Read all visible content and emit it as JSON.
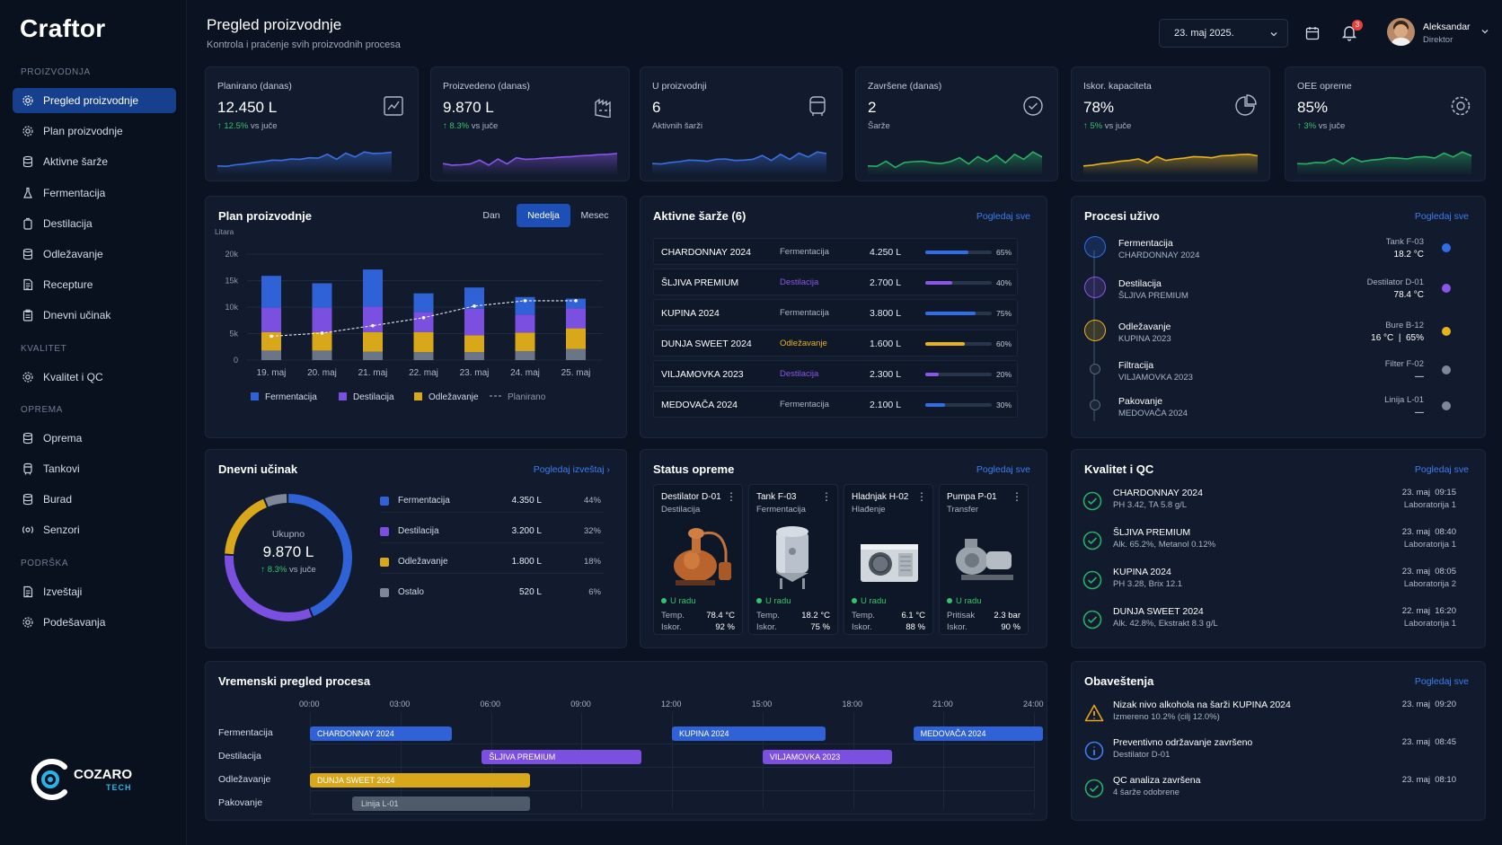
{
  "app": {
    "name": "Craftor"
  },
  "header": {
    "title": "Pregled proizvodnje",
    "subtitle": "Kontrola i praćenje svih proizvodnih procesa",
    "date": "23. maj 2025.",
    "notif_count": "3",
    "user_name": "Aleksandar",
    "user_role": "Direktor"
  },
  "sidebar": {
    "sections": [
      {
        "title": "PROIZVODNJA",
        "items": [
          {
            "label": "Pregled proizvodnje",
            "icon": "gear-icon"
          },
          {
            "label": "Plan proizvodnje",
            "icon": "gear-icon"
          },
          {
            "label": "Aktivne šarže",
            "icon": "barrel-icon"
          },
          {
            "label": "Fermentacija",
            "icon": "flask-icon"
          },
          {
            "label": "Destilacija",
            "icon": "still-icon"
          },
          {
            "label": "Odležavanje",
            "icon": "barrel-icon"
          },
          {
            "label": "Recepture",
            "icon": "document-icon"
          },
          {
            "label": "Dnevni učinak",
            "icon": "clipboard-icon"
          }
        ]
      },
      {
        "title": "KVALITET",
        "items": [
          {
            "label": "Kvalitet i QC",
            "icon": "gear-icon"
          }
        ]
      },
      {
        "title": "OPREMA",
        "items": [
          {
            "label": "Oprema",
            "icon": "barrel-icon"
          },
          {
            "label": "Tankovi",
            "icon": "tank-icon"
          },
          {
            "label": "Burad",
            "icon": "barrel-icon"
          },
          {
            "label": "Senzori",
            "icon": "sensor-icon"
          }
        ]
      },
      {
        "title": "PODRŠKA",
        "items": [
          {
            "label": "Izveštaji",
            "icon": "document-icon"
          },
          {
            "label": "Podešavanja",
            "icon": "gear-icon"
          }
        ]
      }
    ],
    "brand_name": "COZARO",
    "brand_sub": "TECH"
  },
  "kpis": [
    {
      "label": "Planirano (danas)",
      "value": "12.450 L",
      "trend": "12.5%",
      "trend_suffix": "vs juče",
      "icon": "chart-icon",
      "color": "#3b6fe0"
    },
    {
      "label": "Proizvedeno (danas)",
      "value": "9.870 L",
      "trend": "8.3%",
      "trend_suffix": "vs juče",
      "icon": "factory-icon",
      "color": "#8a55e8"
    },
    {
      "label": "U proizvodnji",
      "value": "6",
      "sub": "Aktivnih šarži",
      "icon": "tank-icon",
      "color": "#3b6fe0"
    },
    {
      "label": "Završene (danas)",
      "value": "2",
      "sub": "Šarže",
      "icon": "check-circle-icon",
      "color": "#29b065"
    },
    {
      "label": "Iskor. kapaciteta",
      "value": "78%",
      "trend": "5%",
      "trend_suffix": "vs juče",
      "icon": "pie-icon",
      "color": "#e8b21c"
    },
    {
      "label": "OEE opreme",
      "value": "85%",
      "trend": "3%",
      "trend_suffix": "vs juče",
      "icon": "gear-icon",
      "color": "#29b065"
    }
  ],
  "plan": {
    "title": "Plan proizvodnje",
    "toggles": [
      "Dan",
      "Nedelja",
      "Mesec"
    ],
    "active_toggle": "Nedelja"
  },
  "chart_data": {
    "type": "bar",
    "ylabel": "Litara",
    "ylim": [
      0,
      20000
    ],
    "yticks": [
      "0",
      "5k",
      "10k",
      "15k",
      "20k"
    ],
    "categories": [
      "19. maj",
      "20. maj",
      "21. maj",
      "22. maj",
      "23. maj",
      "24. maj",
      "25. maj"
    ],
    "series": [
      {
        "name": "Fermentacija",
        "color": "#2f62d6",
        "values": [
          6000,
          4600,
          7000,
          3500,
          4000,
          3300,
          1800
        ]
      },
      {
        "name": "Destilacija",
        "color": "#7b4fe0",
        "values": [
          4600,
          4600,
          4800,
          3800,
          5000,
          3400,
          3800
        ]
      },
      {
        "name": "Odležavanje",
        "color": "#d9a81a",
        "values": [
          3500,
          3500,
          3700,
          3800,
          3200,
          3500,
          3900
        ]
      },
      {
        "name": "Ostalo",
        "color": "#6a7587",
        "values": [
          1800,
          1800,
          1600,
          1500,
          1500,
          1700,
          2100
        ]
      }
    ],
    "line": {
      "name": "Planirano",
      "values": [
        4500,
        5100,
        6500,
        8000,
        10200,
        11200,
        11200
      ]
    }
  },
  "batches": {
    "title": "Aktivne šarže (6)",
    "link": "Pogledaj sve",
    "rows": [
      {
        "name": "CHARDONNAY 2024",
        "process": "Fermentacija",
        "volume": "4.250 L",
        "pct": "65%",
        "progress": 0.65,
        "color": "#2f6ee6"
      },
      {
        "name": "ŠLJIVA PREMIUM",
        "process": "Destilacija",
        "volume": "2.700 L",
        "pct": "40%",
        "progress": 0.4,
        "color": "#8a55e8"
      },
      {
        "name": "KUPINA 2024",
        "process": "Fermentacija",
        "volume": "3.800 L",
        "pct": "75%",
        "progress": 0.75,
        "color": "#2f6ee6"
      },
      {
        "name": "DUNJA SWEET 2024",
        "process": "Odležavanje",
        "volume": "1.600 L",
        "pct": "60%",
        "progress": 0.6,
        "color": "#e8b21c"
      },
      {
        "name": "VILJAMOVKA 2023",
        "process": "Destilacija",
        "volume": "2.300 L",
        "pct": "20%",
        "progress": 0.2,
        "color": "#8a55e8"
      },
      {
        "name": "MEDOVAČA 2024",
        "process": "Fermentacija",
        "volume": "2.100 L",
        "pct": "30%",
        "progress": 0.3,
        "color": "#2f6ee6"
      }
    ]
  },
  "live": {
    "title": "Procesi uživo",
    "link": "Pogledaj sve",
    "rows": [
      {
        "process": "Fermentacija",
        "batch": "CHARDONNAY 2024",
        "equip": "Tank F-03",
        "reading": "18.2 °C",
        "color": "#2f6ee6"
      },
      {
        "process": "Destilacija",
        "batch": "ŠLJIVA PREMIUM",
        "equip": "Destilator D-01",
        "reading": "78.4 °C",
        "color": "#8a55e8"
      },
      {
        "process": "Odležavanje",
        "batch": "KUPINA 2023",
        "equip": "Bure B-12",
        "reading": "16 °C  |  65%",
        "color": "#e8b21c"
      },
      {
        "process": "Filtracija",
        "batch": "VILJAMOVKA 2023",
        "equip": "Filter F-02",
        "reading": "—",
        "color": "#7d8797"
      },
      {
        "process": "Pakovanje",
        "batch": "MEDOVAČA 2024",
        "equip": "Linija L-01",
        "reading": "—",
        "color": "#7d8797"
      }
    ]
  },
  "daily": {
    "title": "Dnevni učinak",
    "link": "Pogledaj izveštaj",
    "total_label": "Ukupno",
    "total": "9.870 L",
    "trend": "8.3%",
    "trend_suffix": "vs juče",
    "rows": [
      {
        "name": "Fermentacija",
        "value": "4.350 L",
        "pct": "44%",
        "share": 0.44,
        "color": "#2f62d6"
      },
      {
        "name": "Destilacija",
        "value": "3.200 L",
        "pct": "32%",
        "share": 0.32,
        "color": "#7b4fe0"
      },
      {
        "name": "Odležavanje",
        "value": "1.800 L",
        "pct": "18%",
        "share": 0.18,
        "color": "#d9a81a"
      },
      {
        "name": "Ostalo",
        "value": "520 L",
        "pct": "6%",
        "share": 0.06,
        "color": "#7d8797"
      }
    ]
  },
  "equipment": {
    "title": "Status opreme",
    "link": "Pogledaj sve",
    "items": [
      {
        "name": "Destilator D-01",
        "type": "Destilacija",
        "status": "U radu",
        "m1_label": "Temp.",
        "m1": "78.4 °C",
        "m2_label": "Iskor.",
        "m2": "92 %",
        "image": "copper-still"
      },
      {
        "name": "Tank F-03",
        "type": "Fermentacija",
        "status": "U radu",
        "m1_label": "Temp.",
        "m1": "18.2 °C",
        "m2_label": "Iskor.",
        "m2": "75 %",
        "image": "steel-tank"
      },
      {
        "name": "Hladnjak H-02",
        "type": "Hlađenje",
        "status": "U radu",
        "m1_label": "Temp.",
        "m1": "6.1 °C",
        "m2_label": "Iskor.",
        "m2": "88 %",
        "image": "chiller"
      },
      {
        "name": "Pumpa P-01",
        "type": "Transfer",
        "status": "U radu",
        "m1_label": "Pritisak",
        "m1": "2.3 bar",
        "m2_label": "Iskor.",
        "m2": "90 %",
        "image": "pump"
      }
    ]
  },
  "qc": {
    "title": "Kvalitet i QC",
    "link": "Pogledaj sve",
    "rows": [
      {
        "name": "CHARDONNAY 2024",
        "detail": "PH 3.42, TA 5.8 g/L",
        "date": "23. maj  09:15",
        "lab": "Laboratorija 1"
      },
      {
        "name": "ŠLJIVA PREMIUM",
        "detail": "Alk. 65.2%, Metanol 0.12%",
        "date": "23. maj  08:40",
        "lab": "Laboratorija 1"
      },
      {
        "name": "KUPINA 2024",
        "detail": "PH 3.28, Brix 12.1",
        "date": "23. maj  08:05",
        "lab": "Laboratorija 2"
      },
      {
        "name": "DUNJA SWEET 2024",
        "detail": "Alk. 42.8%, Ekstrakt 8.3 g/L",
        "date": "22. maj  16:20",
        "lab": "Laboratorija 1"
      }
    ]
  },
  "timeline": {
    "title": "Vremenski pregled procesa",
    "ticks": [
      "00:00",
      "03:00",
      "06:00",
      "09:00",
      "12:00",
      "15:00",
      "18:00",
      "21:00",
      "24:00"
    ],
    "lanes": [
      "Fermentacija",
      "Destilacija",
      "Odležavanje",
      "Pakovanje"
    ],
    "bars": [
      {
        "lane": 0,
        "label": "CHARDONNAY 2024",
        "start": 0,
        "end": 4.7,
        "color": "#2f62d6"
      },
      {
        "lane": 0,
        "label": "KUPINA 2024",
        "start": 12,
        "end": 17.1,
        "color": "#2f62d6"
      },
      {
        "lane": 0,
        "label": "MEDOVAČA 2024",
        "start": 20,
        "end": 24.3,
        "color": "#2f62d6"
      },
      {
        "lane": 1,
        "label": "ŠLJIVA PREMIUM",
        "start": 5.7,
        "end": 11,
        "color": "#7b4fe0"
      },
      {
        "lane": 1,
        "label": "VILJAMOVKA 2023",
        "start": 15,
        "end": 19.3,
        "color": "#7b4fe0"
      },
      {
        "lane": 2,
        "label": "DUNJA SWEET 2024",
        "start": 0,
        "end": 7.3,
        "color": "#d9a81a"
      },
      {
        "lane": 3,
        "label": "Linija L-01",
        "start": 1.4,
        "end": 7.3,
        "color": "#4f5a6b"
      }
    ]
  },
  "notifications": {
    "title": "Obaveštenja",
    "link": "Pogledaj sve",
    "rows": [
      {
        "title": "Nizak nivo alkohola na šarži KUPINA 2024",
        "detail": "Izmereno 10.2% (cilj 12.0%)",
        "time": "23. maj  09:20",
        "icon": "warning-icon",
        "color": "#e8a21c"
      },
      {
        "title": "Preventivno održavanje završeno",
        "detail": "Destilator D-01",
        "time": "23. maj  08:45",
        "icon": "info-icon",
        "color": "#3d7df0"
      },
      {
        "title": "QC analiza završena",
        "detail": "4 šarže odobrene",
        "time": "23. maj  08:10",
        "icon": "check-circle-icon",
        "color": "#29b065"
      }
    ]
  }
}
